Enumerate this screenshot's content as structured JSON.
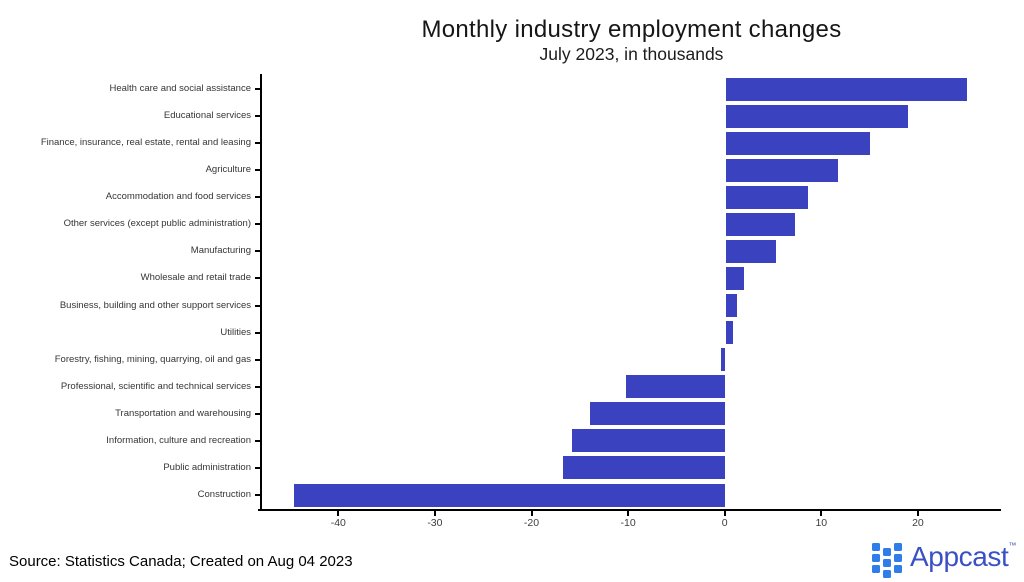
{
  "header": {
    "title": "Monthly industry employment changes",
    "subtitle": "July 2023, in thousands"
  },
  "footer": {
    "source": "Source: Statistics Canada; Created on Aug 04 2023",
    "logo_text": "Appcast",
    "logo_tm": "™"
  },
  "colors": {
    "bar": "#3b42bf",
    "axis": "#000000",
    "logo_square": "#2e7de9",
    "logo_text": "#3a50c5"
  },
  "chart_data": {
    "type": "bar",
    "orientation": "horizontal",
    "title": "Monthly industry employment changes",
    "subtitle": "July 2023, in thousands",
    "categories": [
      "Health care and social assistance",
      "Educational services",
      "Finance, insurance, real estate, rental and leasing",
      "Agriculture",
      "Accommodation and food services",
      "Other services (except public administration)",
      "Manufacturing",
      "Wholesale and retail trade",
      "Business, building and other support services",
      "Utilities",
      "Forestry, fishing, mining, quarrying, oil and gas",
      "Professional, scientific and technical services",
      "Transportation and warehousing",
      "Information, culture and recreation",
      "Public administration",
      "Construction"
    ],
    "values": [
      25,
      18.9,
      14.9,
      11.6,
      8.5,
      7.2,
      5.2,
      1.9,
      1.2,
      0.8,
      -0.4,
      -10.2,
      -13.9,
      -15.8,
      -16.7,
      -44.6
    ],
    "xlabel": "",
    "ylabel": "",
    "xlim": [
      -47.9,
      28.6
    ],
    "x_ticks": [
      -40,
      -30,
      -20,
      -10,
      0,
      10,
      20
    ],
    "grid": false,
    "legend": null
  }
}
